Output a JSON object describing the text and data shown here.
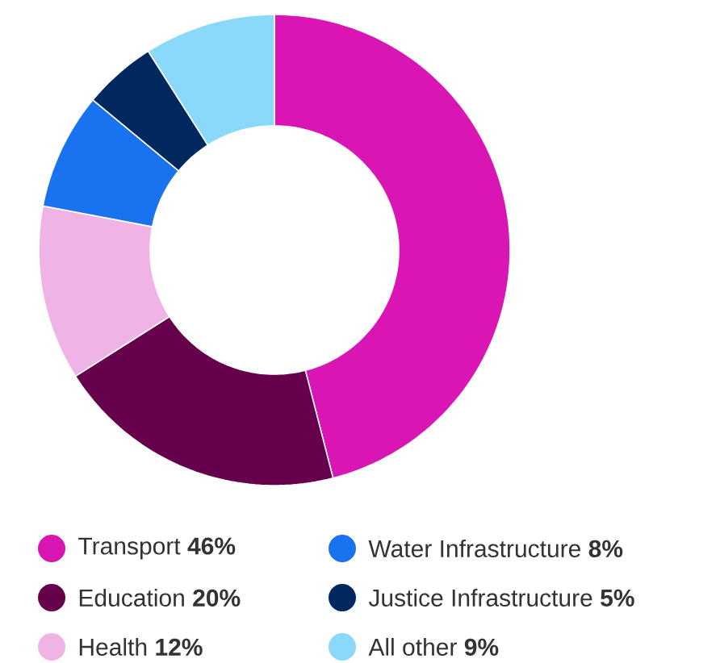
{
  "chart_data": {
    "type": "donut",
    "categories": [
      "Transport",
      "Education",
      "Health",
      "Water Infrastructure",
      "Justice Infrastructure",
      "All other"
    ],
    "values": [
      46,
      20,
      12,
      8,
      5,
      9
    ],
    "value_labels": [
      "46%",
      "20%",
      "12%",
      "8%",
      "5%",
      "9%"
    ],
    "colors": [
      "#d916b4",
      "#66004d",
      "#f0b3e6",
      "#1a73ee",
      "#00275e",
      "#8ad9fa"
    ],
    "legend": "bottom"
  }
}
